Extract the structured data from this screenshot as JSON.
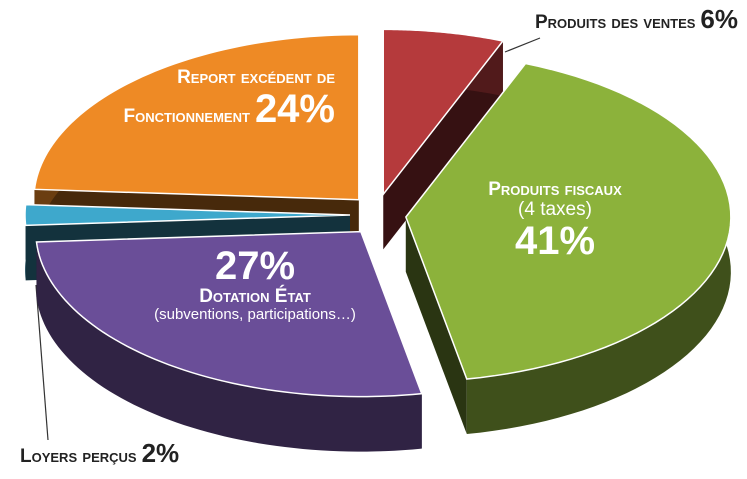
{
  "chart_data": {
    "type": "pie",
    "categories": [
      "Produits des ventes",
      "Produits fiscaux",
      "Dotation État",
      "Loyers perçus",
      "Report excédent de Fonctionnement"
    ],
    "details": [
      null,
      "(4 taxes)",
      "(subventions, participations…)",
      null,
      null
    ],
    "values": [
      6,
      41,
      27,
      2,
      24
    ],
    "value_labels": [
      "6%",
      "41%",
      "27%",
      "2%",
      "24%"
    ],
    "colors": [
      "#b53a3c",
      "#8cb23b",
      "#6a4e98",
      "#3ea8cc",
      "#ee8a25"
    ]
  }
}
